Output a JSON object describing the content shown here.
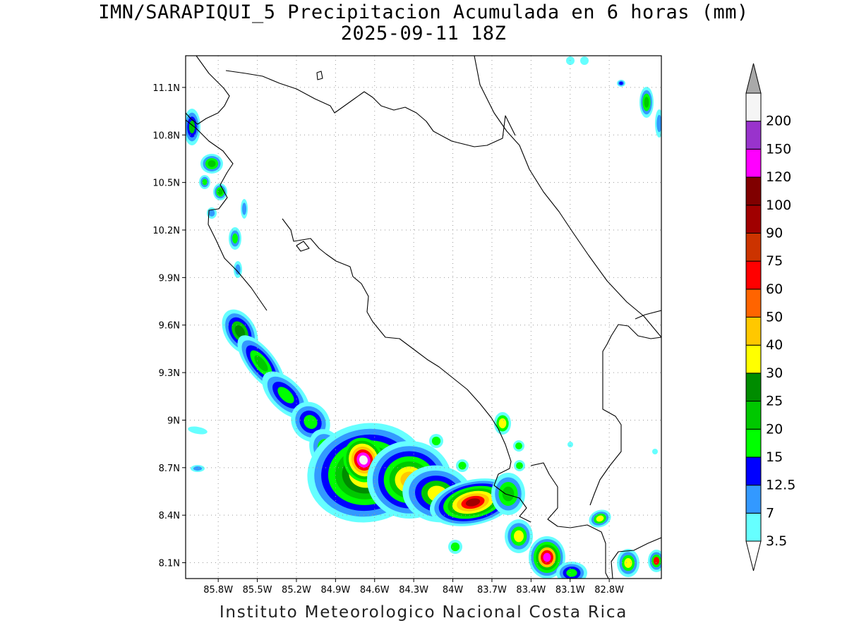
{
  "header": {
    "title_line1": "IMN/SARAPIQUI_5 Precipitacion Acumulada en 6 horas (mm)",
    "title_line2": "2025-09-11 18Z"
  },
  "footer": {
    "credit": "Instituto Meteorologico Nacional Costa Rica"
  },
  "map": {
    "lon_range": [
      -86.05,
      -82.4
    ],
    "lat_range": [
      8.0,
      11.3
    ],
    "lon_ticks": [
      {
        "value": -85.8,
        "label": "85.8W"
      },
      {
        "value": -85.5,
        "label": "85.5W"
      },
      {
        "value": -85.2,
        "label": "85.2W"
      },
      {
        "value": -84.9,
        "label": "84.9W"
      },
      {
        "value": -84.6,
        "label": "84.6W"
      },
      {
        "value": -84.3,
        "label": "84.3W"
      },
      {
        "value": -84.0,
        "label": "84W"
      },
      {
        "value": -83.7,
        "label": "83.7W"
      },
      {
        "value": -83.4,
        "label": "83.4W"
      },
      {
        "value": -83.1,
        "label": "83.1W"
      },
      {
        "value": -82.8,
        "label": "82.8W"
      }
    ],
    "lat_ticks": [
      {
        "value": 8.1,
        "label": "8.1N"
      },
      {
        "value": 8.4,
        "label": "8.4N"
      },
      {
        "value": 8.7,
        "label": "8.7N"
      },
      {
        "value": 9.0,
        "label": "9N"
      },
      {
        "value": 9.3,
        "label": "9.3N"
      },
      {
        "value": 9.6,
        "label": "9.6N"
      },
      {
        "value": 9.9,
        "label": "9.9N"
      },
      {
        "value": 10.2,
        "label": "10.2N"
      },
      {
        "value": 10.5,
        "label": "10.5N"
      },
      {
        "value": 10.8,
        "label": "10.8N"
      },
      {
        "value": 11.1,
        "label": "11.1N"
      }
    ],
    "grid": true
  },
  "colorbar": {
    "levels": [
      {
        "value": "3.5",
        "color": "#66ffff"
      },
      {
        "value": "7",
        "color": "#3399ff"
      },
      {
        "value": "12.5",
        "color": "#0000ff"
      },
      {
        "value": "15",
        "color": "#00ff00"
      },
      {
        "value": "20",
        "color": "#00c800"
      },
      {
        "value": "25",
        "color": "#008c00"
      },
      {
        "value": "30",
        "color": "#ffff00"
      },
      {
        "value": "40",
        "color": "#ffc800"
      },
      {
        "value": "50",
        "color": "#ff6400"
      },
      {
        "value": "60",
        "color": "#ff0000"
      },
      {
        "value": "75",
        "color": "#cc3300"
      },
      {
        "value": "90",
        "color": "#a00000"
      },
      {
        "value": "100",
        "color": "#800000"
      },
      {
        "value": "120",
        "color": "#ff00ff"
      },
      {
        "value": "150",
        "color": "#9933cc"
      },
      {
        "value": "200",
        "color": "#f5f5f5"
      }
    ],
    "below_color": "#ffffff",
    "above_color": "#a9a9a9"
  }
}
